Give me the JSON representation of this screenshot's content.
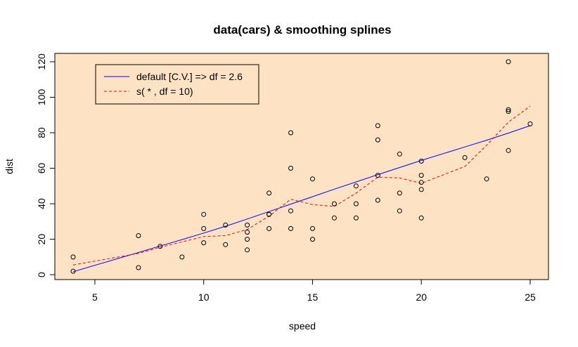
{
  "chart_data": {
    "type": "scatter",
    "title": "data(cars)  &  smoothing splines",
    "xlabel": "speed",
    "ylabel": "dist",
    "xlim": [
      4,
      25
    ],
    "ylim": [
      2,
      120
    ],
    "x_ticks": [
      "5",
      "10",
      "15",
      "20",
      "25"
    ],
    "y_ticks": [
      "0",
      "20",
      "40",
      "60",
      "80",
      "100",
      "120"
    ],
    "grid": false,
    "background_color": "#fde2c4",
    "points": {
      "x": [
        4,
        4,
        7,
        7,
        8,
        9,
        10,
        10,
        10,
        11,
        11,
        12,
        12,
        12,
        12,
        13,
        13,
        13,
        13,
        14,
        14,
        14,
        14,
        15,
        15,
        15,
        16,
        16,
        17,
        17,
        17,
        18,
        18,
        18,
        18,
        19,
        19,
        19,
        20,
        20,
        20,
        20,
        20,
        22,
        23,
        24,
        24,
        24,
        24,
        25
      ],
      "y": [
        2,
        10,
        4,
        22,
        16,
        10,
        18,
        26,
        34,
        17,
        28,
        14,
        20,
        24,
        28,
        26,
        34,
        34,
        46,
        26,
        36,
        60,
        80,
        20,
        26,
        54,
        32,
        40,
        32,
        40,
        50,
        42,
        56,
        76,
        84,
        36,
        46,
        68,
        32,
        48,
        52,
        56,
        64,
        66,
        54,
        70,
        92,
        93,
        120,
        85
      ]
    },
    "series": [
      {
        "name": "default [C.V.] => df = 2.6",
        "color": "#0000ff",
        "line_style": "solid",
        "x": [
          4,
          7,
          8,
          9,
          10,
          11,
          12,
          13,
          14,
          15,
          16,
          17,
          18,
          19,
          20,
          22,
          23,
          24,
          25
        ],
        "y": [
          1.7,
          12.5,
          16.2,
          19.8,
          23.5,
          27.3,
          31.4,
          35.6,
          39.8,
          44.0,
          48.2,
          52.3,
          56.4,
          60.4,
          64.4,
          72.0,
          75.8,
          79.8,
          84.0
        ]
      },
      {
        "name": "s( * , df = 10)",
        "color": "#ff0000",
        "line_style": "dashed",
        "x": [
          4,
          7,
          8,
          9,
          10,
          11,
          12,
          13,
          14,
          15,
          16,
          17,
          18,
          19,
          20,
          22,
          23,
          24,
          25
        ],
        "y": [
          5.5,
          12.0,
          15.5,
          18.5,
          21.5,
          22.0,
          25.5,
          33.0,
          42.5,
          39.5,
          38.5,
          46.0,
          55.0,
          54.5,
          51.5,
          61.0,
          73.0,
          86.0,
          95.0
        ]
      }
    ],
    "legend": {
      "placement": "top-left",
      "entries": [
        "default [C.V.] => df = 2.6",
        "s( * , df = 10)"
      ]
    }
  }
}
